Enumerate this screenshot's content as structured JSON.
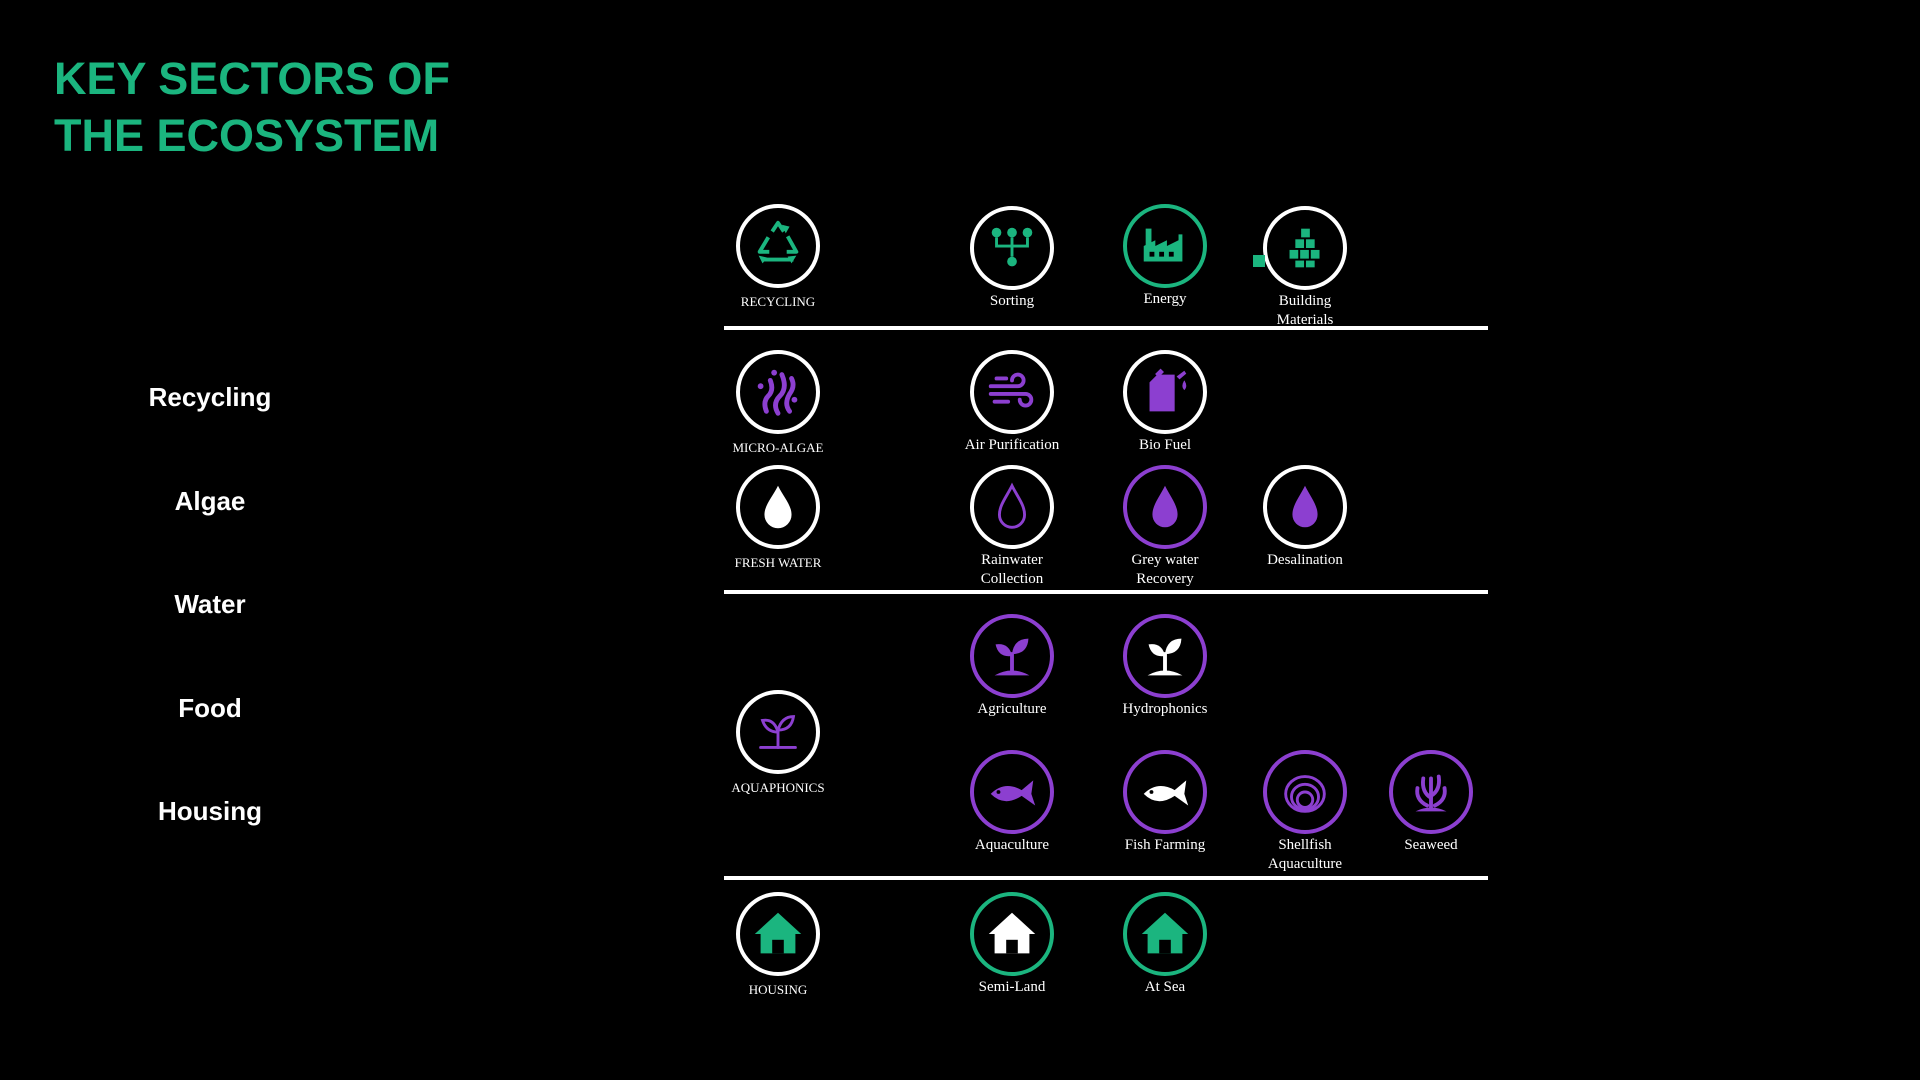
{
  "title": {
    "line1": "KEY SECTORS OF",
    "line2": "THE ECOSYSTEM"
  },
  "sidebar": [
    "Recycling",
    "Algae",
    "Water",
    "Food",
    "Housing"
  ],
  "colors": {
    "green": "#1bb57f",
    "purple": "#8c3fd0",
    "white": "#ffffff",
    "background": "#000000"
  },
  "rows": {
    "recycling": {
      "category": {
        "label": "RECYCLING",
        "icon": "recycle-icon"
      },
      "items": [
        {
          "label": [
            "Sorting"
          ],
          "icon": "sorting-tree-icon"
        },
        {
          "label": [
            "Energy"
          ],
          "icon": "factory-icon"
        },
        {
          "label": [
            "Building",
            "Materials"
          ],
          "icon": "stacked-boxes-icon"
        }
      ]
    },
    "algae": {
      "category": {
        "label": "MICRO-ALGAE",
        "icon": "algae-icon"
      },
      "items": [
        {
          "label": [
            "Air Purification"
          ],
          "icon": "wind-icon"
        },
        {
          "label": [
            "Bio Fuel"
          ],
          "icon": "fuel-can-icon"
        }
      ]
    },
    "water": {
      "category": {
        "label": "FRESH WATER",
        "icon": "water-drop-icon"
      },
      "items": [
        {
          "label": [
            "Rainwater",
            "Collection"
          ],
          "icon": "outline-drop-icon"
        },
        {
          "label": [
            "Grey water",
            "Recovery"
          ],
          "icon": "drop-icon"
        },
        {
          "label": [
            "Desalination"
          ],
          "icon": "drop-icon"
        }
      ]
    },
    "food": {
      "category": {
        "label": "AQUAPHONICS",
        "icon": "sprout-icon"
      },
      "plants": [
        {
          "label": [
            "Agriculture"
          ],
          "icon": "sprout-icon"
        },
        {
          "label": [
            "Hydrophonics"
          ],
          "icon": "sprout-icon"
        }
      ],
      "aquatic": [
        {
          "label": [
            "Aquaculture"
          ],
          "icon": "fish-icon"
        },
        {
          "label": [
            "Fish Farming"
          ],
          "icon": "fish-icon"
        },
        {
          "label": [
            "Shellfish",
            "Aquaculture"
          ],
          "icon": "shellfish-icon"
        },
        {
          "label": [
            "Seaweed"
          ],
          "icon": "seaweed-icon"
        }
      ]
    },
    "housing": {
      "category": {
        "label": "HOUSING",
        "icon": "house-icon"
      },
      "items": [
        {
          "label": [
            "Semi-Land"
          ],
          "icon": "house-icon"
        },
        {
          "label": [
            "At Sea"
          ],
          "icon": "house-icon"
        }
      ]
    }
  }
}
